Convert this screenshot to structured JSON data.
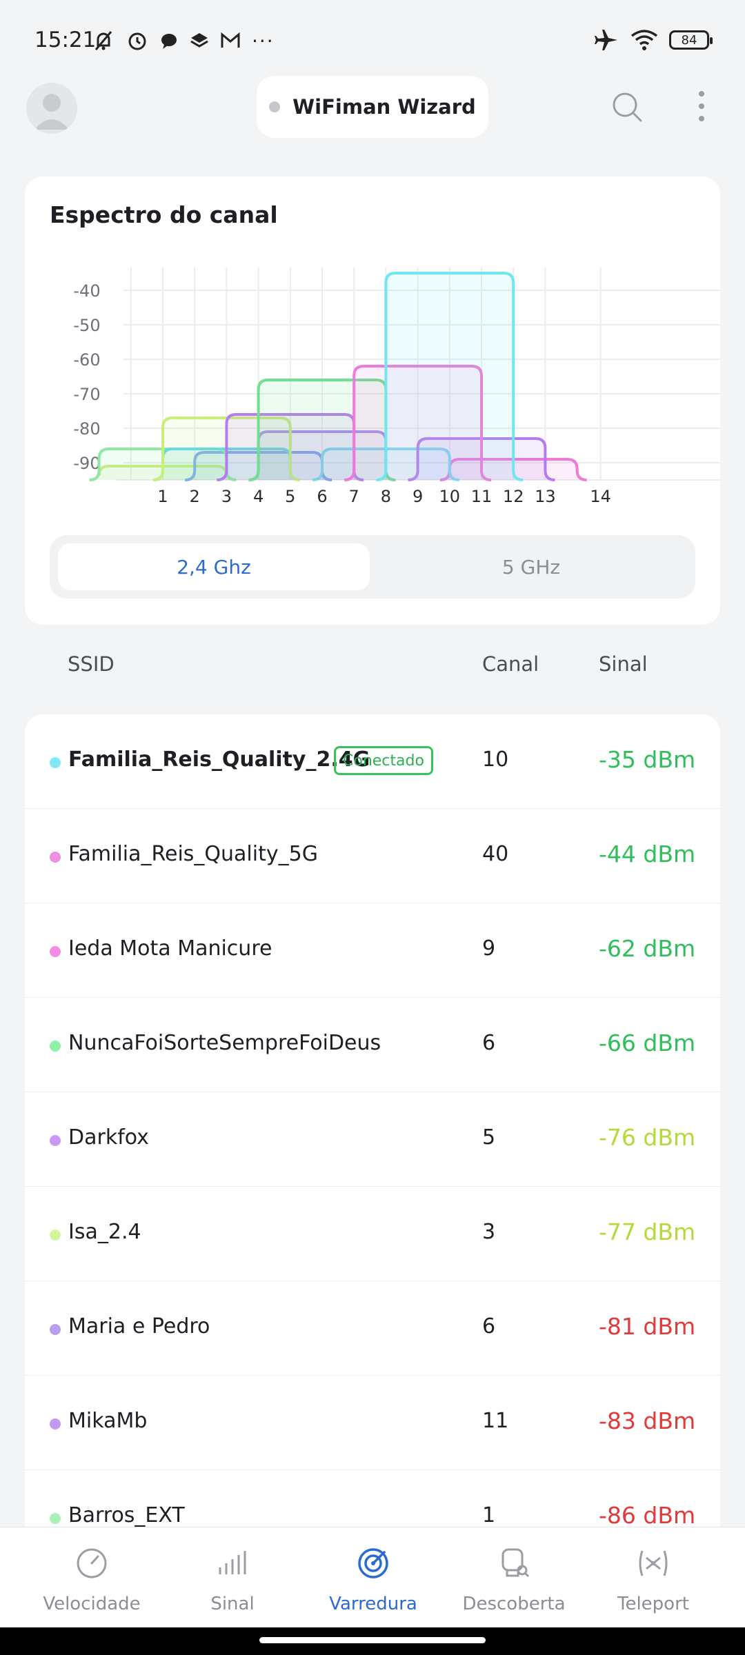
{
  "status_bar": {
    "time": "15:21",
    "battery": "84"
  },
  "header": {
    "title": "WiFiman Wizard"
  },
  "spectrum": {
    "title": "Espectro do canal",
    "y_ticks": [
      "-40",
      "-50",
      "-60",
      "-70",
      "-80",
      "-90"
    ],
    "x_ticks": [
      "1",
      "2",
      "3",
      "4",
      "5",
      "6",
      "7",
      "8",
      "9",
      "10",
      "11",
      "12",
      "13",
      "14"
    ],
    "band_options": [
      "2,4 Ghz",
      "5 GHz"
    ]
  },
  "chart_data": {
    "type": "area",
    "title": "Espectro do canal",
    "xlabel": "",
    "ylabel": "",
    "x_channels": [
      1,
      2,
      3,
      4,
      5,
      6,
      7,
      8,
      9,
      10,
      11,
      12,
      13,
      14
    ],
    "ylim": [
      -95,
      -35
    ],
    "grid": true,
    "series": [
      {
        "channel": 10,
        "signal_dbm": -35,
        "color": "#6ee7f0"
      },
      {
        "channel": 9,
        "signal_dbm": -62,
        "color": "#f07ad9"
      },
      {
        "channel": 6,
        "signal_dbm": -66,
        "color": "#6fe08e"
      },
      {
        "channel": 5,
        "signal_dbm": -76,
        "color": "#b57cf0"
      },
      {
        "channel": 3,
        "signal_dbm": -77,
        "color": "#c9ef7a"
      },
      {
        "channel": 6,
        "signal_dbm": -81,
        "color": "#a98af0"
      },
      {
        "channel": 11,
        "signal_dbm": -83,
        "color": "#b57cf0"
      },
      {
        "channel": 1,
        "signal_dbm": -86,
        "color": "#8fe9a5"
      },
      {
        "channel": 3,
        "signal_dbm": -86,
        "color": "#5cd8ee"
      },
      {
        "channel": 8,
        "signal_dbm": -86,
        "color": "#7de0f0"
      },
      {
        "channel": 12,
        "signal_dbm": -89,
        "color": "#f07ad9"
      },
      {
        "channel": 1,
        "signal_dbm": -91,
        "color": "#c9ef7a"
      },
      {
        "channel": 4,
        "signal_dbm": -87,
        "color": "#7ea0f0"
      }
    ]
  },
  "columns": {
    "ssid": "SSID",
    "channel": "Canal",
    "signal": "Sinal"
  },
  "networks": [
    {
      "ssid": "Familia_Reis_Quality_2.4G",
      "channel": "10",
      "signal": "-35 dBm",
      "dot_color": "#7ee9f2",
      "signal_color": "#2fbf5a",
      "connected": true,
      "badge": "Conectado"
    },
    {
      "ssid": "Familia_Reis_Quality_5G",
      "channel": "40",
      "signal": "-44 dBm",
      "dot_color": "#f08ee0",
      "signal_color": "#2fbf5a"
    },
    {
      "ssid": "Ieda Mota Manicure",
      "channel": "9",
      "signal": "-62 dBm",
      "dot_color": "#f58be0",
      "signal_color": "#2fbf5a"
    },
    {
      "ssid": "NuncaFoiSorteSempreFoiDeus",
      "channel": "6",
      "signal": "-66 dBm",
      "dot_color": "#8ff0a8",
      "signal_color": "#2fbf5a"
    },
    {
      "ssid": "Darkfox",
      "channel": "5",
      "signal": "-76 dBm",
      "dot_color": "#c79af5",
      "signal_color": "#b4d93a"
    },
    {
      "ssid": "Isa_2.4",
      "channel": "3",
      "signal": "-77 dBm",
      "dot_color": "#d6f59a",
      "signal_color": "#b4d93a"
    },
    {
      "ssid": "Maria e Pedro",
      "channel": "6",
      "signal": "-81 dBm",
      "dot_color": "#b9a0f0",
      "signal_color": "#e03a3a"
    },
    {
      "ssid": "MikaMb",
      "channel": "11",
      "signal": "-83 dBm",
      "dot_color": "#c49af0",
      "signal_color": "#e03a3a"
    },
    {
      "ssid": "Barros_EXT",
      "channel": "1",
      "signal": "-86 dBm",
      "dot_color": "#a8f0b8",
      "signal_color": "#e03a3a"
    }
  ],
  "bottom_nav": [
    {
      "label": "Velocidade",
      "icon": "speedometer-icon"
    },
    {
      "label": "Sinal",
      "icon": "signal-bars-icon"
    },
    {
      "label": "Varredura",
      "icon": "radar-icon",
      "active": true
    },
    {
      "label": "Descoberta",
      "icon": "device-search-icon"
    },
    {
      "label": "Teleport",
      "icon": "teleport-icon"
    }
  ],
  "colors": {
    "accent": "#2a6bd1",
    "good": "#2fbf5a",
    "fair": "#b4d93a",
    "poor": "#e03a3a"
  }
}
